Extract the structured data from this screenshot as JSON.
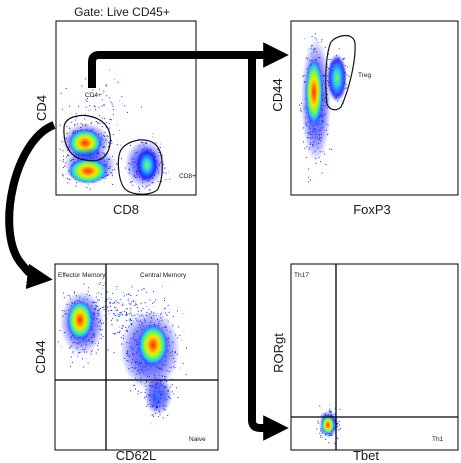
{
  "title": "Gate: Live CD45+",
  "panels": {
    "cd4_cd8": {
      "xlabel": "CD8",
      "ylabel": "CD4",
      "gates": [
        "CD4+",
        "CD8+"
      ]
    },
    "treg": {
      "xlabel": "FoxP3",
      "ylabel": "CD44",
      "gates": [
        "Treg"
      ]
    },
    "memory": {
      "xlabel": "CD62L",
      "ylabel": "CD44",
      "quadrants": [
        "Effector Memory",
        "Central Memory",
        "Naive"
      ]
    },
    "th": {
      "xlabel": "Tbet",
      "ylabel": "RORgt",
      "quadrants": [
        "Th17",
        "Th1"
      ]
    }
  },
  "colors": {
    "density_low": "#1a1aff",
    "density_mid": "#22c7ff",
    "density_midhigh": "#7cff3a",
    "density_high": "#ffe000",
    "density_peak": "#ff2a00",
    "arrow": "#000000"
  }
}
